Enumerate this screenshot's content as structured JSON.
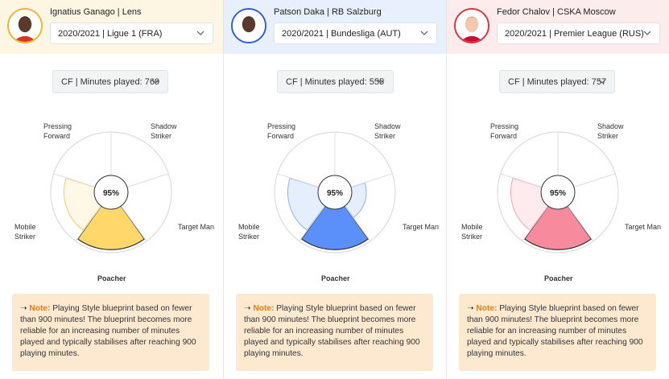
{
  "players": [
    {
      "name": "Ignatius Ganago | Lens",
      "season": "2020/2021 | Ligue 1 (FRA)",
      "position": "CF | Minutes played: 769",
      "score": "95%",
      "color_fill": "#ffd76a",
      "color_light": "#fff8e6",
      "color_stroke": "#f3cb6a",
      "color_accent": "#f0b429"
    },
    {
      "name": "Patson Daka | RB Salzburg",
      "season": "2020/2021 | Bundesliga (AUT)",
      "position": "CF | Minutes played: 555",
      "score": "95%",
      "color_fill": "#5b8ff9",
      "color_light": "#e5eefc",
      "color_stroke": "#8fb1f2",
      "color_accent": "#2f5bd8"
    },
    {
      "name": "Fedor Chalov | CSKA Moscow",
      "season": "2020/2021 | Premier League (RUS)",
      "position": "CF | Minutes played: 757",
      "score": "95%",
      "color_fill": "#f78a9c",
      "color_light": "#fdebee",
      "color_stroke": "#f0a7b3",
      "color_accent": "#e0303d"
    }
  ],
  "radar_labels": {
    "pressing_forward": [
      "Pressing",
      "Forward"
    ],
    "shadow_striker": [
      "Shadow",
      "Striker"
    ],
    "mobile_striker": [
      "Mobile",
      "Striker"
    ],
    "target_man": "Target Man",
    "poacher": "Poacher"
  },
  "note": {
    "arrow": "➝",
    "label": "Note:",
    "text": " Playing Style blueprint based on fewer than 900 minutes! The blueprint becomes more reliable for an increasing number of minutes played and typically stabilises after reaching 900 playing minutes."
  },
  "icons": {
    "dropdown": "chevron-down-icon",
    "avatar": "player-avatar-icon"
  }
}
